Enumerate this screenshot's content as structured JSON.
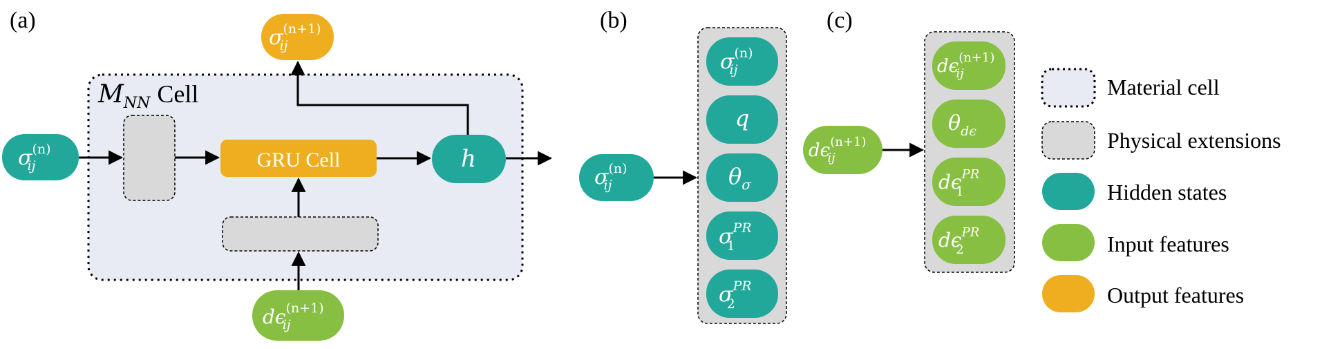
{
  "colors": {
    "hidden": "#22A89A",
    "input": "#86BF41",
    "output": "#EFAE1F",
    "cell_bg": "#E8EAF4",
    "physical": "#D9D9D9"
  },
  "panel_a": {
    "label": "(a)",
    "cell_title_script": "M",
    "cell_title_sub": "NN",
    "cell_title_suffix": "Cell",
    "gru_label": "GRU Cell",
    "h_label": "h",
    "input_sigma": {
      "base": "σ",
      "sup": "(n)",
      "sub": "ij"
    },
    "output_sigma": {
      "base": "σ",
      "sup": "(n+1)",
      "sub": "ij"
    },
    "input_strain": {
      "base": "dϵ",
      "sup": "(n+1)",
      "sub": "ij"
    }
  },
  "panel_b": {
    "label": "(b)",
    "input": {
      "base": "σ",
      "sup": "(n)",
      "sub": "ij"
    },
    "items": [
      {
        "base": "σ",
        "sup": "(n)",
        "sub": "ij"
      },
      {
        "base": "q",
        "sup": "",
        "sub": ""
      },
      {
        "base": "θ",
        "sup": "",
        "sub": "σ"
      },
      {
        "base": "σ",
        "sup": "PR",
        "sub": "1"
      },
      {
        "base": "σ",
        "sup": "PR",
        "sub": "2"
      }
    ]
  },
  "panel_c": {
    "label": "(c)",
    "input": {
      "base": "dϵ",
      "sup": "(n+1)",
      "sub": "ij"
    },
    "items": [
      {
        "base": "dϵ",
        "sup": "(n+1)",
        "sub": "ij"
      },
      {
        "base": "θ",
        "sup": "",
        "sub": "dϵ"
      },
      {
        "base": "dϵ",
        "sup": "PR",
        "sub": "1"
      },
      {
        "base": "dϵ",
        "sup": "PR",
        "sub": "2"
      }
    ]
  },
  "legend": [
    {
      "label": "Material cell"
    },
    {
      "label": "Physical extensions"
    },
    {
      "label": "Hidden states"
    },
    {
      "label": "Input features"
    },
    {
      "label": "Output features"
    }
  ]
}
